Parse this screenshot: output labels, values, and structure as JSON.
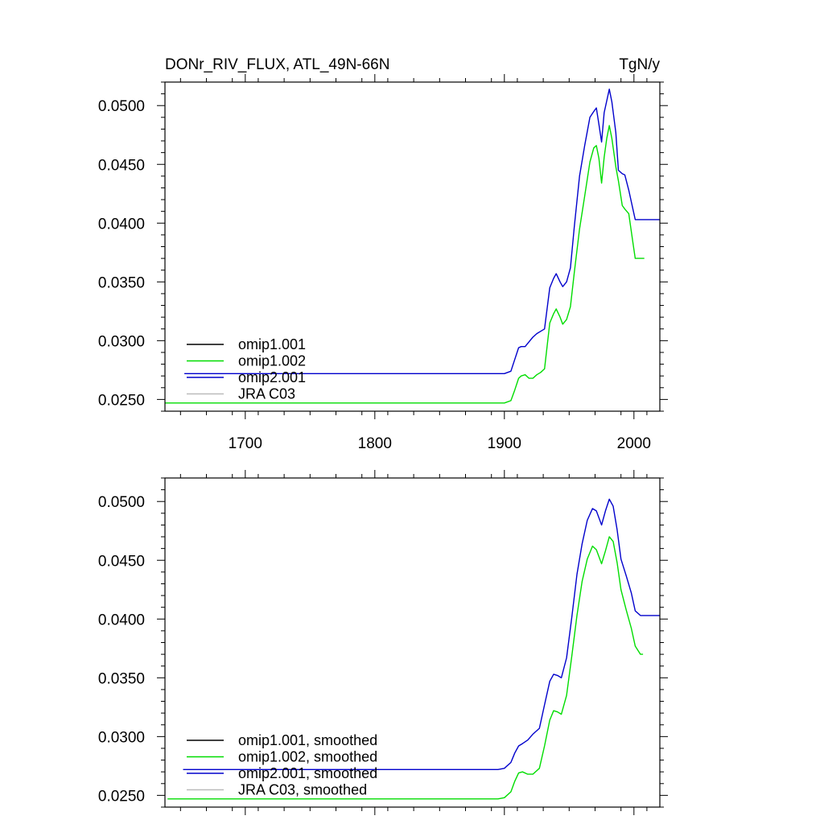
{
  "colors": {
    "omip1_001": "#000000",
    "omip1_002": "#00dd00",
    "omip2_001": "#0000cc",
    "jra": "#bbbbbb"
  },
  "chart_data": [
    {
      "type": "line",
      "title": "DONr_RIV_FLUX, ATL_49N-66N",
      "units": "TgN/y",
      "xlim": [
        1638,
        2020
      ],
      "ylim": [
        0.024,
        0.052
      ],
      "xticks": [
        1700,
        1800,
        1900,
        2000
      ],
      "xtick_labels": [
        "1700",
        "1800",
        "1900",
        "2000"
      ],
      "yticks": [
        0.025,
        0.03,
        0.035,
        0.04,
        0.045,
        0.05
      ],
      "ytick_labels": [
        "0.0250",
        "0.0300",
        "0.0350",
        "0.0400",
        "0.0450",
        "0.0500"
      ],
      "legend_location": "lower-left",
      "series": [
        {
          "name": "omip1.001",
          "color_key": "omip1_001",
          "x": [],
          "y": []
        },
        {
          "name": "omip1.002",
          "color_key": "omip1_002",
          "x": [
            1638,
            1900,
            1905,
            1908,
            1911,
            1913,
            1916,
            1919,
            1922,
            1925,
            1928,
            1931,
            1935,
            1938,
            1940,
            1943,
            1945,
            1948,
            1951,
            1954,
            1958,
            1962,
            1966,
            1969,
            1971,
            1973,
            1975,
            1977,
            1979,
            1981,
            1983,
            1986,
            1988,
            1991,
            1993,
            1996,
            1999,
            2001,
            2003,
            2008
          ],
          "y": [
            0.0247,
            0.0247,
            0.0249,
            0.0258,
            0.0268,
            0.027,
            0.0271,
            0.0268,
            0.0268,
            0.0271,
            0.0273,
            0.0276,
            0.0315,
            0.0323,
            0.0327,
            0.032,
            0.0314,
            0.0318,
            0.0329,
            0.0358,
            0.0395,
            0.0423,
            0.0452,
            0.0464,
            0.0466,
            0.0455,
            0.0434,
            0.0456,
            0.0472,
            0.0483,
            0.0472,
            0.0448,
            0.0436,
            0.0415,
            0.0412,
            0.0408,
            0.0385,
            0.037,
            0.037,
            0.037
          ]
        },
        {
          "name": "omip2.001",
          "color_key": "omip2_001",
          "x": [
            1653,
            1900,
            1905,
            1908,
            1911,
            1913,
            1916,
            1919,
            1922,
            1925,
            1928,
            1931,
            1935,
            1938,
            1940,
            1943,
            1945,
            1948,
            1951,
            1954,
            1958,
            1962,
            1966,
            1969,
            1971,
            1973,
            1975,
            1977,
            1979,
            1981,
            1983,
            1986,
            1988,
            1991,
            1993,
            1996,
            1999,
            2001,
            2003,
            2020
          ],
          "y": [
            0.0272,
            0.0272,
            0.0274,
            0.0284,
            0.0294,
            0.0295,
            0.0295,
            0.0299,
            0.0303,
            0.0306,
            0.0308,
            0.031,
            0.0345,
            0.0353,
            0.0357,
            0.035,
            0.0346,
            0.035,
            0.0362,
            0.0397,
            0.044,
            0.0466,
            0.049,
            0.0495,
            0.0498,
            0.0484,
            0.0469,
            0.0494,
            0.0504,
            0.0514,
            0.0503,
            0.0477,
            0.0445,
            0.0442,
            0.0441,
            0.0428,
            0.0413,
            0.0403,
            0.0403,
            0.0403
          ]
        },
        {
          "name": "JRA C03",
          "color_key": "jra",
          "x": [],
          "y": []
        }
      ]
    },
    {
      "type": "line",
      "title": "",
      "units": "",
      "xlim": [
        1638,
        2020
      ],
      "ylim": [
        0.024,
        0.052
      ],
      "xticks": [
        1700,
        1800,
        1900,
        2000
      ],
      "xtick_labels": [],
      "yticks": [
        0.025,
        0.03,
        0.035,
        0.04,
        0.045,
        0.05
      ],
      "ytick_labels": [
        "0.0250",
        "0.0300",
        "0.0350",
        "0.0400",
        "0.0450",
        "0.0500"
      ],
      "legend_location": "lower-left",
      "series": [
        {
          "name": "omip1.001, smoothed",
          "color_key": "omip1_001",
          "x": [],
          "y": []
        },
        {
          "name": "omip1.002, smoothed",
          "color_key": "omip1_002",
          "x": [
            1640,
            1895,
            1900,
            1905,
            1908,
            1911,
            1914,
            1918,
            1922,
            1927,
            1931,
            1935,
            1938,
            1941,
            1944,
            1948,
            1952,
            1956,
            1960,
            1964,
            1968,
            1971,
            1975,
            1978,
            1981,
            1984,
            1987,
            1990,
            1994,
            1998,
            2001,
            2005,
            2007
          ],
          "y": [
            0.0247,
            0.0247,
            0.0248,
            0.0253,
            0.0262,
            0.0269,
            0.027,
            0.0268,
            0.0268,
            0.0273,
            0.0292,
            0.0314,
            0.0322,
            0.0321,
            0.0319,
            0.0335,
            0.0368,
            0.0403,
            0.0432,
            0.0451,
            0.0462,
            0.0459,
            0.0447,
            0.0458,
            0.047,
            0.0466,
            0.0448,
            0.0425,
            0.0408,
            0.0392,
            0.0377,
            0.037,
            0.037
          ]
        },
        {
          "name": "omip2.001, smoothed",
          "color_key": "omip2_001",
          "x": [
            1652,
            1895,
            1900,
            1905,
            1908,
            1911,
            1914,
            1918,
            1922,
            1927,
            1931,
            1935,
            1938,
            1941,
            1944,
            1948,
            1952,
            1956,
            1960,
            1964,
            1968,
            1971,
            1975,
            1978,
            1981,
            1984,
            1987,
            1990,
            1994,
            1998,
            2001,
            2005,
            2020
          ],
          "y": [
            0.0272,
            0.0272,
            0.0273,
            0.0278,
            0.0286,
            0.0292,
            0.0294,
            0.0297,
            0.0302,
            0.0307,
            0.0327,
            0.0347,
            0.0353,
            0.0352,
            0.035,
            0.0367,
            0.0401,
            0.0438,
            0.0464,
            0.0484,
            0.0494,
            0.0492,
            0.048,
            0.0492,
            0.0502,
            0.0496,
            0.0476,
            0.0451,
            0.0437,
            0.0422,
            0.0407,
            0.0403,
            0.0403
          ]
        },
        {
          "name": "JRA C03, smoothed",
          "color_key": "jra",
          "x": [],
          "y": []
        }
      ]
    }
  ]
}
